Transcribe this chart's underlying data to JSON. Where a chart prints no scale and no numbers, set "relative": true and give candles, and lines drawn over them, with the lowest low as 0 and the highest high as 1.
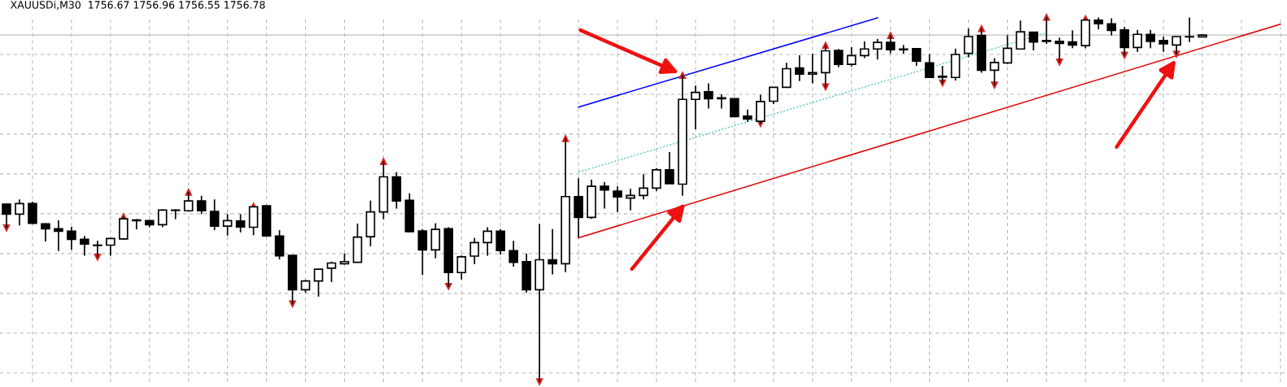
{
  "chart_data": {
    "type": "candlestick",
    "relative": true,
    "title": "XAUUSDi,M30  1756.67 1756.96 1756.55 1756.78",
    "grid": true,
    "tick_labels": false,
    "categories": [
      null,
      null,
      null,
      null,
      null,
      null,
      null,
      null,
      null,
      null,
      null,
      null,
      null,
      null,
      null,
      null,
      null,
      null,
      null,
      null,
      null,
      null,
      null,
      null,
      null,
      null,
      null,
      null,
      null,
      null,
      null,
      null,
      null,
      null,
      null,
      null,
      null,
      null,
      null,
      null,
      null,
      null,
      null,
      null,
      null,
      null,
      null,
      null,
      null,
      null,
      null,
      null,
      null,
      null,
      null,
      null,
      null,
      null,
      null,
      null,
      null,
      null,
      null,
      null,
      null,
      null,
      null,
      null,
      null,
      null,
      null,
      null,
      null,
      null,
      null,
      null,
      null,
      null,
      null,
      null,
      null,
      null,
      null,
      null,
      null,
      null,
      null,
      null,
      null,
      null,
      null,
      null,
      null,
      null,
      null,
      null,
      null,
      null,
      null
    ],
    "ohlc": [
      [
        0.487,
        0.489,
        0.421,
        0.46
      ],
      [
        0.46,
        0.5,
        0.429,
        0.489
      ],
      [
        0.489,
        0.494,
        0.433,
        0.435
      ],
      [
        0.433,
        0.435,
        0.385,
        0.42
      ],
      [
        0.42,
        0.443,
        0.359,
        0.413
      ],
      [
        0.413,
        0.425,
        0.362,
        0.391
      ],
      [
        0.391,
        0.4,
        0.346,
        0.378
      ],
      [
        0.375,
        0.387,
        0.341,
        0.374
      ],
      [
        0.375,
        0.395,
        0.346,
        0.393
      ],
      [
        0.392,
        0.454,
        0.39,
        0.447
      ],
      [
        0.442,
        0.446,
        0.418,
        0.444
      ],
      [
        0.442,
        0.444,
        0.424,
        0.431
      ],
      [
        0.431,
        0.473,
        0.424,
        0.471
      ],
      [
        0.47,
        0.473,
        0.446,
        0.471
      ],
      [
        0.469,
        0.521,
        0.467,
        0.496
      ],
      [
        0.496,
        0.51,
        0.46,
        0.469
      ],
      [
        0.467,
        0.5,
        0.416,
        0.427
      ],
      [
        0.427,
        0.46,
        0.401,
        0.442
      ],
      [
        0.441,
        0.46,
        0.41,
        0.425
      ],
      [
        0.424,
        0.483,
        0.402,
        0.48
      ],
      [
        0.483,
        0.484,
        0.398,
        0.4
      ],
      [
        0.4,
        0.416,
        0.336,
        0.346
      ],
      [
        0.347,
        0.347,
        0.213,
        0.253
      ],
      [
        0.253,
        0.28,
        0.245,
        0.277
      ],
      [
        0.277,
        0.31,
        0.234,
        0.309
      ],
      [
        0.312,
        0.33,
        0.274,
        0.326
      ],
      [
        0.324,
        0.352,
        0.322,
        0.33
      ],
      [
        0.328,
        0.434,
        0.328,
        0.397
      ],
      [
        0.398,
        0.497,
        0.372,
        0.466
      ],
      [
        0.466,
        0.605,
        0.446,
        0.562
      ],
      [
        0.562,
        0.575,
        0.475,
        0.496
      ],
      [
        0.498,
        0.517,
        0.41,
        0.412
      ],
      [
        0.414,
        0.419,
        0.293,
        0.362
      ],
      [
        0.362,
        0.435,
        0.339,
        0.418
      ],
      [
        0.42,
        0.424,
        0.261,
        0.3
      ],
      [
        0.3,
        0.347,
        0.281,
        0.343
      ],
      [
        0.345,
        0.395,
        0.323,
        0.382
      ],
      [
        0.382,
        0.424,
        0.346,
        0.413
      ],
      [
        0.413,
        0.419,
        0.349,
        0.36
      ],
      [
        0.36,
        0.387,
        0.316,
        0.328
      ],
      [
        0.33,
        0.352,
        0.245,
        0.253
      ],
      [
        0.253,
        0.433,
        0.0,
        0.335
      ],
      [
        0.335,
        0.419,
        0.295,
        0.324
      ],
      [
        0.324,
        0.668,
        0.301,
        0.508
      ],
      [
        0.508,
        0.558,
        0.397,
        0.451
      ],
      [
        0.451,
        0.554,
        0.447,
        0.536
      ],
      [
        0.536,
        0.548,
        0.475,
        0.526
      ],
      [
        0.523,
        0.536,
        0.466,
        0.507
      ],
      [
        0.504,
        0.529,
        0.47,
        0.511
      ],
      [
        0.511,
        0.569,
        0.5,
        0.531
      ],
      [
        0.531,
        0.586,
        0.523,
        0.581
      ],
      [
        0.581,
        0.63,
        0.543,
        0.543
      ],
      [
        0.542,
        0.841,
        0.51,
        0.774
      ],
      [
        0.774,
        0.812,
        0.692,
        0.793
      ],
      [
        0.795,
        0.818,
        0.749,
        0.776
      ],
      [
        0.778,
        0.788,
        0.749,
        0.776
      ],
      [
        0.776,
        0.776,
        0.726,
        0.727
      ],
      [
        0.728,
        0.746,
        0.713,
        0.72
      ],
      [
        0.714,
        0.787,
        0.707,
        0.768
      ],
      [
        0.769,
        0.807,
        0.761,
        0.807
      ],
      [
        0.807,
        0.874,
        0.807,
        0.858
      ],
      [
        0.86,
        0.895,
        0.824,
        0.843
      ],
      [
        0.843,
        0.899,
        0.818,
        0.847
      ],
      [
        0.847,
        0.923,
        0.807,
        0.907
      ],
      [
        0.908,
        0.912,
        0.862,
        0.87
      ],
      [
        0.87,
        0.917,
        0.864,
        0.894
      ],
      [
        0.894,
        0.933,
        0.887,
        0.912
      ],
      [
        0.912,
        0.94,
        0.883,
        0.93
      ],
      [
        0.93,
        0.95,
        0.9,
        0.91
      ],
      [
        0.912,
        0.923,
        0.899,
        0.91
      ],
      [
        0.913,
        0.914,
        0.866,
        0.879
      ],
      [
        0.874,
        0.898,
        0.834,
        0.834
      ],
      [
        0.835,
        0.866,
        0.818,
        0.837
      ],
      [
        0.834,
        0.913,
        0.826,
        0.897
      ],
      [
        0.9,
        0.968,
        0.889,
        0.946
      ],
      [
        0.949,
        0.969,
        0.847,
        0.854
      ],
      [
        0.854,
        0.887,
        0.812,
        0.875
      ],
      [
        0.874,
        0.95,
        0.871,
        0.914
      ],
      [
        0.912,
        0.99,
        0.912,
        0.959
      ],
      [
        0.958,
        0.959,
        0.908,
        0.931
      ],
      [
        0.935,
        1.0,
        0.926,
        0.933
      ],
      [
        0.933,
        0.943,
        0.875,
        0.927
      ],
      [
        0.931,
        0.963,
        0.914,
        0.923
      ],
      [
        0.921,
        0.996,
        0.914,
        0.991
      ],
      [
        0.991,
        0.998,
        0.966,
        0.981
      ],
      [
        0.981,
        0.996,
        0.949,
        0.963
      ],
      [
        0.964,
        0.972,
        0.894,
        0.916
      ],
      [
        0.916,
        0.964,
        0.904,
        0.952
      ],
      [
        0.952,
        0.964,
        0.914,
        0.933
      ],
      [
        0.935,
        0.946,
        0.904,
        0.926
      ],
      [
        0.923,
        0.946,
        0.897,
        0.946
      ],
      [
        0.945,
        0.998,
        0.931,
        0.946
      ],
      [
        0.945,
        0.952,
        0.945,
        0.95
      ],
      null,
      null,
      null,
      null,
      null,
      null
    ],
    "series": [
      {
        "type": "line",
        "color": "#0000ff",
        "line_style": "solid",
        "values": [
          null,
          null,
          null,
          null,
          null,
          null,
          null,
          null,
          null,
          null,
          null,
          null,
          null,
          null,
          null,
          null,
          null,
          null,
          null,
          null,
          null,
          null,
          null,
          null,
          null,
          null,
          null,
          null,
          null,
          null,
          null,
          null,
          null,
          null,
          null,
          null,
          null,
          null,
          null,
          null,
          null,
          null,
          null,
          null,
          0.753,
          null,
          null,
          null,
          null,
          null,
          null,
          null,
          null,
          null,
          null,
          null,
          null,
          null,
          null,
          null,
          null,
          null,
          null,
          null,
          null,
          null,
          null,
          0.997,
          null,
          null,
          null,
          null,
          null,
          null,
          null,
          null,
          null,
          null,
          null,
          null,
          null,
          null,
          null,
          null,
          null,
          null,
          null,
          null,
          null,
          null,
          null,
          null,
          null,
          null,
          null,
          null,
          null,
          null,
          null
        ]
      },
      {
        "type": "line",
        "color": "#e00000",
        "line_style": "solid",
        "values": [
          null,
          null,
          null,
          null,
          null,
          null,
          null,
          null,
          null,
          null,
          null,
          null,
          null,
          null,
          null,
          null,
          null,
          null,
          null,
          null,
          null,
          null,
          null,
          null,
          null,
          null,
          null,
          null,
          null,
          null,
          null,
          null,
          null,
          null,
          null,
          null,
          null,
          null,
          null,
          null,
          null,
          null,
          null,
          null,
          0.395,
          null,
          null,
          null,
          null,
          null,
          null,
          null,
          null,
          null,
          null,
          null,
          null,
          null,
          null,
          null,
          null,
          null,
          null,
          null,
          null,
          null,
          null,
          null,
          null,
          null,
          null,
          null,
          null,
          null,
          null,
          null,
          null,
          null,
          null,
          null,
          null,
          null,
          null,
          null,
          null,
          null,
          null,
          null,
          null,
          null,
          null,
          null,
          null,
          null,
          null,
          null,
          null,
          null,
          0.98
        ]
      },
      {
        "type": "line",
        "color": "#66cccc",
        "line_style": "dotted",
        "values": [
          null,
          null,
          null,
          null,
          null,
          null,
          null,
          null,
          null,
          null,
          null,
          null,
          null,
          null,
          null,
          null,
          null,
          null,
          null,
          null,
          null,
          null,
          null,
          null,
          null,
          null,
          null,
          null,
          null,
          null,
          null,
          null,
          null,
          null,
          null,
          null,
          null,
          null,
          null,
          null,
          null,
          null,
          null,
          null,
          0.575,
          null,
          null,
          null,
          null,
          null,
          null,
          null,
          null,
          null,
          null,
          null,
          null,
          null,
          null,
          null,
          null,
          null,
          null,
          null,
          null,
          null,
          null,
          null,
          null,
          null,
          null,
          null,
          null,
          null,
          null,
          null,
          null,
          null,
          null,
          null,
          0.956,
          null,
          null,
          null,
          null,
          null,
          null,
          null,
          null,
          null,
          null,
          null,
          null,
          null,
          null,
          null,
          null,
          null,
          null
        ]
      },
      {
        "type": "scatter",
        "marker": "triangle",
        "color": "#dd2222",
        "values": [
          null,
          null,
          null,
          null,
          null,
          null,
          null,
          null,
          null,
          0.454,
          null,
          null,
          null,
          null,
          0.521,
          null,
          null,
          null,
          null,
          0.483,
          null,
          null,
          null,
          null,
          null,
          null,
          null,
          null,
          null,
          0.605,
          null,
          null,
          null,
          null,
          null,
          null,
          null,
          null,
          null,
          null,
          null,
          null,
          null,
          0.668,
          null,
          null,
          null,
          null,
          null,
          null,
          null,
          null,
          0.841,
          null,
          null,
          null,
          null,
          null,
          null,
          null,
          null,
          null,
          null,
          0.923,
          null,
          null,
          null,
          null,
          0.95,
          null,
          null,
          null,
          null,
          null,
          null,
          0.969,
          null,
          null,
          null,
          null,
          1.0,
          null,
          null,
          0.996,
          null,
          null,
          null,
          null,
          null,
          null,
          null,
          null,
          null,
          null,
          null,
          null,
          null,
          null,
          null
        ]
      },
      {
        "type": "scatter",
        "marker": "triangle",
        "color": "#dd2222",
        "values": [
          0.421,
          null,
          null,
          null,
          null,
          null,
          null,
          0.341,
          null,
          null,
          null,
          null,
          null,
          null,
          null,
          null,
          null,
          null,
          null,
          null,
          null,
          null,
          0.213,
          null,
          null,
          null,
          null,
          null,
          null,
          null,
          null,
          null,
          null,
          null,
          0.261,
          null,
          null,
          null,
          null,
          null,
          null,
          0.0,
          null,
          null,
          null,
          null,
          null,
          null,
          null,
          null,
          null,
          null,
          null,
          null,
          null,
          null,
          null,
          null,
          0.707,
          null,
          null,
          null,
          null,
          0.807,
          null,
          null,
          null,
          null,
          null,
          null,
          null,
          null,
          0.818,
          null,
          null,
          null,
          0.812,
          null,
          null,
          null,
          null,
          0.875,
          null,
          null,
          null,
          null,
          0.894,
          null,
          null,
          null,
          0.897,
          null,
          null,
          null,
          null,
          null,
          null,
          null,
          null
        ]
      }
    ],
    "ref_lines": [
      {
        "axis": "y",
        "value": 0.95,
        "color": "#c0c0c0"
      }
    ]
  }
}
